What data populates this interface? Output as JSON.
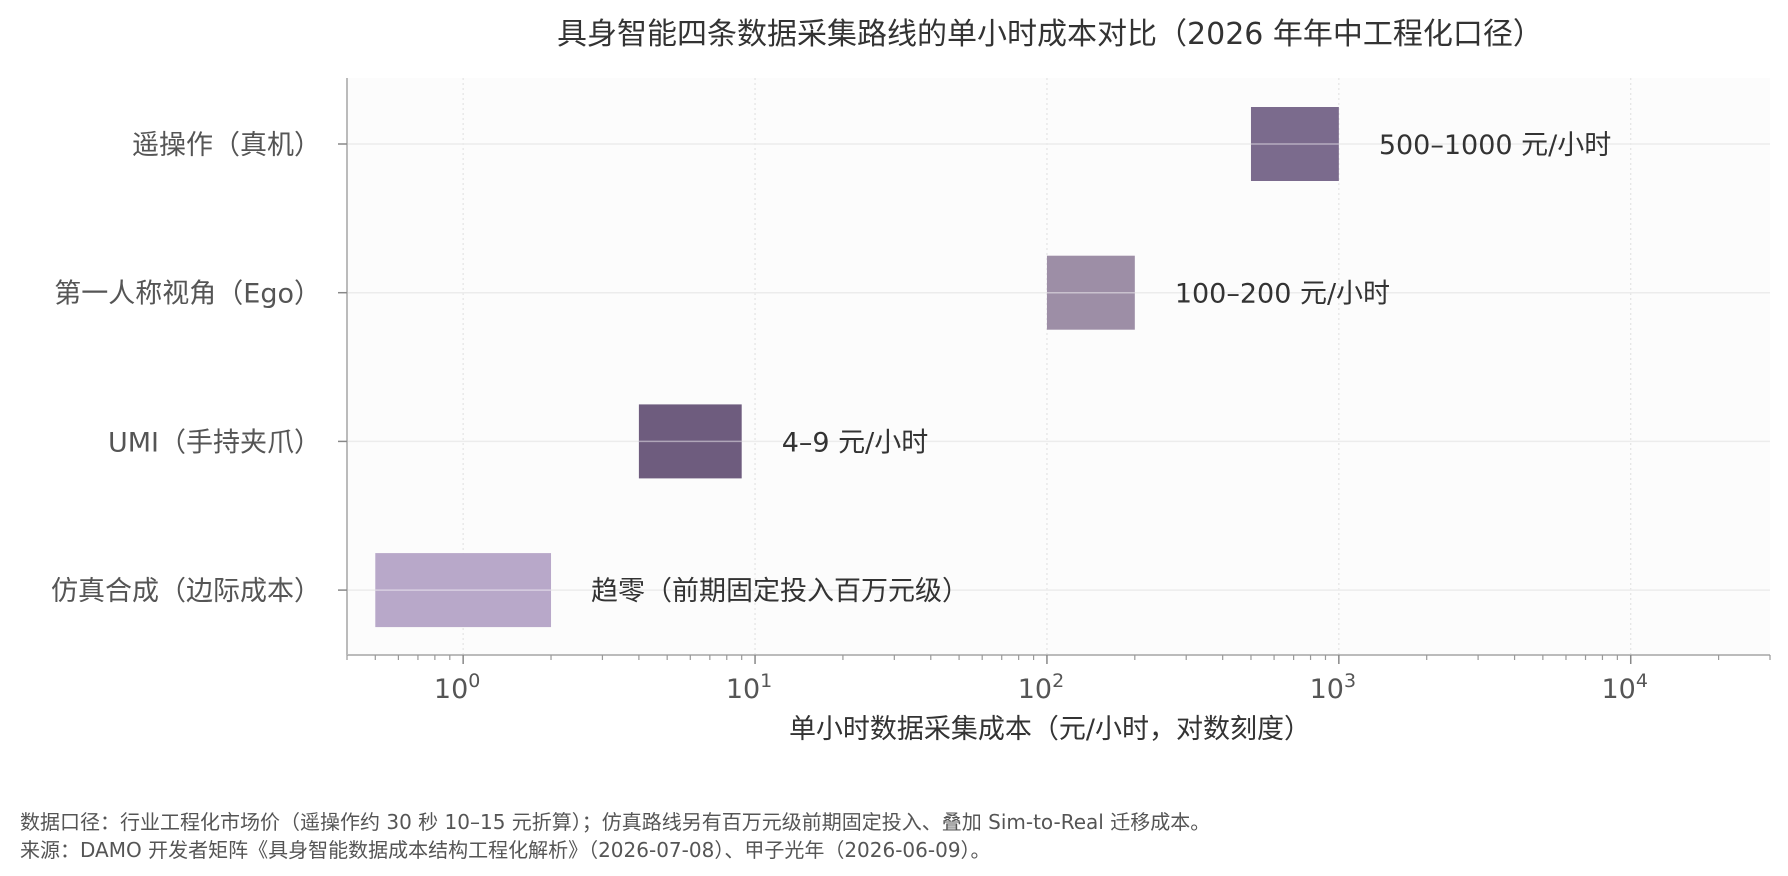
{
  "chart_data": {
    "type": "bar",
    "orientation": "horizontal-range",
    "title": "具身智能四条数据采集路线的单小时成本对比（2026 年年中工程化口径）",
    "xlabel": "单小时数据采集成本（元/小时，对数刻度）",
    "xscale": "log",
    "xlim": [
      0.4,
      30000
    ],
    "x_ticks": [
      {
        "value": 1,
        "base": "10",
        "exp": "0"
      },
      {
        "value": 10,
        "base": "10",
        "exp": "1"
      },
      {
        "value": 100,
        "base": "10",
        "exp": "2"
      },
      {
        "value": 1000,
        "base": "10",
        "exp": "3"
      },
      {
        "value": 10000,
        "base": "10",
        "exp": "4"
      }
    ],
    "grid": true,
    "categories": [
      {
        "label": "遥操作（真机）",
        "low": 500,
        "high": 1000,
        "value_label": "500–1000 元/小时",
        "color": "#7b6b8d"
      },
      {
        "label": "第一人称视角（Ego）",
        "low": 100,
        "high": 200,
        "value_label": "100–200 元/小时",
        "color": "#9d8ea6"
      },
      {
        "label": "UMI（手持夹爪）",
        "low": 4,
        "high": 9,
        "value_label": "4–9 元/小时",
        "color": "#6e5c7e"
      },
      {
        "label": "仿真合成（边际成本）",
        "low": 0.5,
        "high": 2,
        "value_label": "趋零（前期固定投入百万元级）",
        "color": "#b8a8c9"
      }
    ]
  },
  "footnotes": {
    "line1": "数据口径：行业工程化市场价（遥操作约 30 秒 10–15 元折算）；仿真路线另有百万元级前期固定投入、叠加 Sim-to-Real 迁移成本。",
    "line2": "来源：DAMO 开发者矩阵《具身智能数据成本结构工程化解析》（2026-07-08）、甲子光年（2026-06-09）。"
  }
}
